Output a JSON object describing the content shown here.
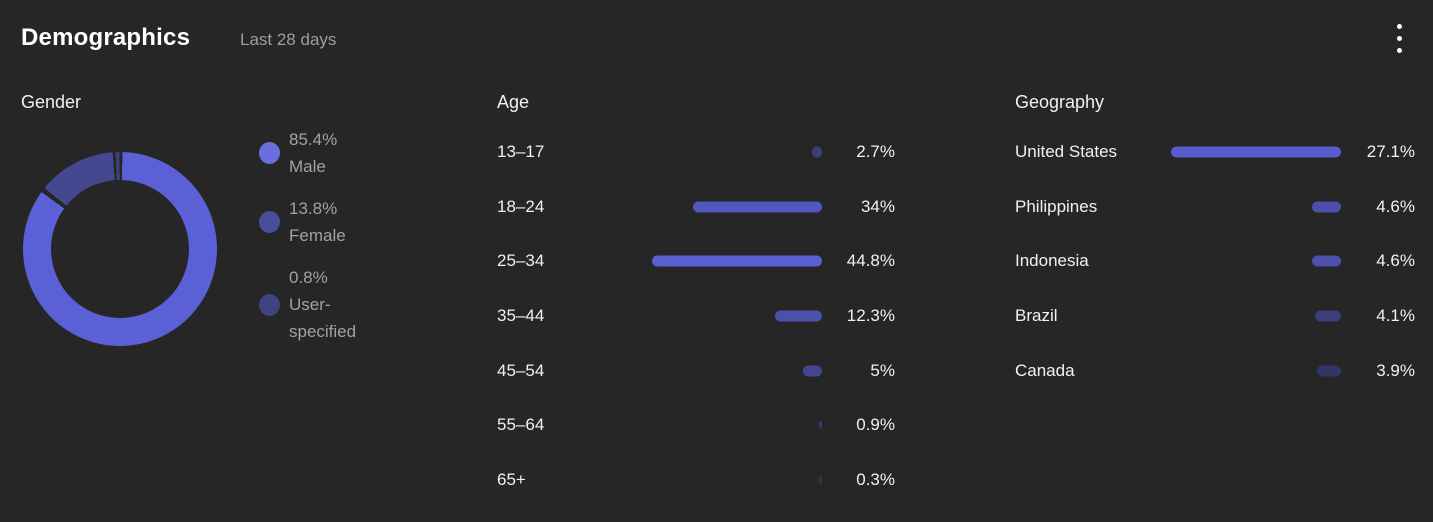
{
  "header": {
    "title": "Demographics",
    "subtitle": "Last 28 days"
  },
  "icons": {
    "more_options": "kebab-vertical-menu-icon"
  },
  "colors": {
    "background": "#262626",
    "title_text": "#ffffff",
    "subtitle_text": "#9e9e9e",
    "section_text": "#f1f1f1",
    "legend_text": "#a2a2a2",
    "accent_bright": "#5B60D6"
  },
  "chart_data": [
    {
      "type": "pie",
      "donut": true,
      "title": "Gender",
      "labels": [
        "Male",
        "Female",
        "User-specified"
      ],
      "values": [
        85.4,
        13.8,
        0.8
      ],
      "value_labels": [
        "85.4%",
        "13.8%",
        "0.8%"
      ],
      "colors": [
        "#5B60D6",
        "#44488E",
        "#3A3E7A"
      ],
      "legend_marker_colors": [
        "#6A6FDF",
        "#4A4E9A",
        "#3F4380"
      ],
      "legend_position": "right",
      "start_angle_deg": 0,
      "direction": "clockwise"
    },
    {
      "type": "bar",
      "orientation": "horizontal",
      "title": "Age",
      "categories": [
        "13–17",
        "18–24",
        "25–34",
        "35–44",
        "45–54",
        "55–64",
        "65+"
      ],
      "values": [
        2.7,
        34,
        44.8,
        12.3,
        5,
        0.9,
        0.3
      ],
      "value_labels": [
        "2.7%",
        "34%",
        "44.8%",
        "12.3%",
        "5%",
        "0.9%",
        "0.3%"
      ],
      "colors": [
        "#3B3F7C",
        "#5257BF",
        "#5A5FD2",
        "#4B50AA",
        "#434790",
        "#343767",
        "#303360"
      ],
      "xlim": [
        0,
        44.8
      ],
      "bars_right_aligned": true,
      "grid": false
    },
    {
      "type": "bar",
      "orientation": "horizontal",
      "title": "Geography",
      "categories": [
        "United States",
        "Philippines",
        "Indonesia",
        "Brazil",
        "Canada"
      ],
      "values": [
        27.1,
        4.6,
        4.6,
        4.1,
        3.9
      ],
      "value_labels": [
        "27.1%",
        "4.6%",
        "4.6%",
        "4.1%",
        "3.9%"
      ],
      "colors": [
        "#575CCB",
        "#4B50AA",
        "#4B50AA",
        "#3B3F7C",
        "#323566"
      ],
      "xlim": [
        0,
        27.1
      ],
      "bars_right_aligned": true,
      "grid": false
    }
  ]
}
